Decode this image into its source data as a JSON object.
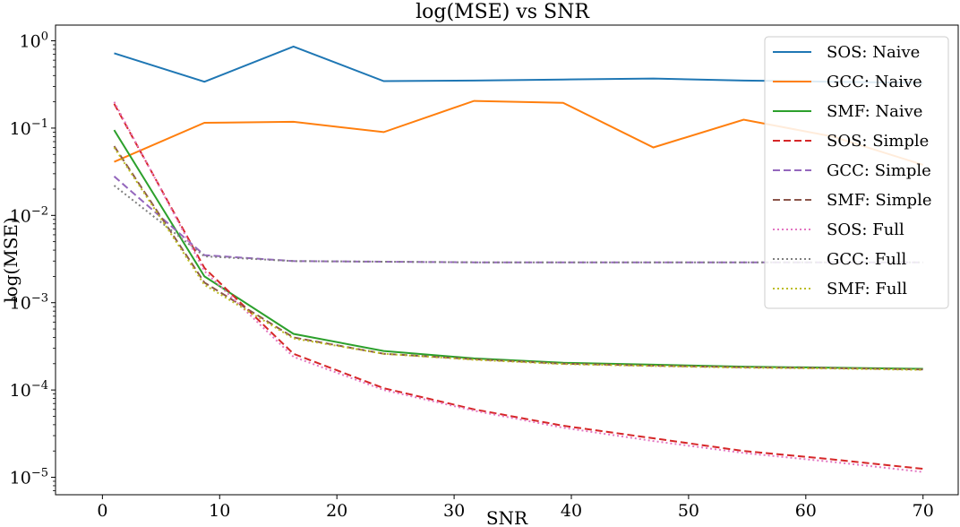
{
  "chart_data": {
    "type": "line",
    "title": "log(MSE) vs SNR",
    "xlabel": "SNR",
    "ylabel": "log(MSE)",
    "xlim": [
      -4,
      73
    ],
    "ylim_log10": [
      -5.2,
      0.18
    ],
    "yscale": "log",
    "grid": false,
    "legend_position": "top-right",
    "x_ticks": [
      0,
      10,
      20,
      30,
      40,
      50,
      60,
      70
    ],
    "x_tick_labels": [
      "0",
      "10",
      "20",
      "30",
      "40",
      "50",
      "60",
      "70"
    ],
    "y_ticks_log10": [
      0,
      -1,
      -2,
      -3,
      -4,
      -5
    ],
    "y_tick_labels": [
      {
        "base": "10",
        "exp": "0"
      },
      {
        "base": "10",
        "exp": "−1"
      },
      {
        "base": "10",
        "exp": "−2"
      },
      {
        "base": "10",
        "exp": "−3"
      },
      {
        "base": "10",
        "exp": "−4"
      },
      {
        "base": "10",
        "exp": "−5"
      }
    ],
    "x": [
      1,
      8.7,
      16.3,
      24,
      31.7,
      39.3,
      47,
      54.7,
      62.3,
      70
    ],
    "series": [
      {
        "name": "SOS: Naive",
        "color": "#1f77b4",
        "dash": "solid",
        "values": [
          0.72,
          0.34,
          0.86,
          0.345,
          0.35,
          0.36,
          0.37,
          0.35,
          0.34,
          0.33
        ]
      },
      {
        "name": "GCC: Naive",
        "color": "#ff7f0e",
        "dash": "solid",
        "values": [
          0.041,
          0.115,
          0.118,
          0.09,
          0.205,
          0.195,
          0.06,
          0.125,
          0.08,
          0.038
        ]
      },
      {
        "name": "SMF: Naive",
        "color": "#2ca02c",
        "dash": "solid",
        "values": [
          0.095,
          0.002,
          0.00044,
          0.00028,
          0.00023,
          0.000205,
          0.000195,
          0.000185,
          0.00018,
          0.000175
        ]
      },
      {
        "name": "SOS: Simple",
        "color": "#d62728",
        "dash": "dashed",
        "values": [
          0.19,
          0.0025,
          0.00026,
          0.000105,
          6e-05,
          3.9e-05,
          2.8e-05,
          2e-05,
          1.6e-05,
          1.25e-05
        ]
      },
      {
        "name": "GCC: Simple",
        "color": "#9467bd",
        "dash": "dashed",
        "values": [
          0.028,
          0.0035,
          0.003,
          0.00295,
          0.0029,
          0.0029,
          0.0029,
          0.0029,
          0.0029,
          0.0029
        ]
      },
      {
        "name": "SMF: Simple",
        "color": "#8c564b",
        "dash": "dashed",
        "values": [
          0.062,
          0.0017,
          0.0004,
          0.00026,
          0.000225,
          0.0002,
          0.00019,
          0.000182,
          0.000178,
          0.000172
        ]
      },
      {
        "name": "SOS: Full",
        "color": "#e377c2",
        "dash": "dotted",
        "values": [
          0.2,
          0.0023,
          0.00024,
          0.0001,
          5.8e-05,
          3.7e-05,
          2.6e-05,
          1.9e-05,
          1.5e-05,
          1.15e-05
        ]
      },
      {
        "name": "GCC: Full",
        "color": "#7f7f7f",
        "dash": "dotted",
        "values": [
          0.022,
          0.0034,
          0.003,
          0.00295,
          0.0029,
          0.0029,
          0.0029,
          0.0029,
          0.0029,
          0.0029
        ]
      },
      {
        "name": "SMF: Full",
        "color": "#bcbd22",
        "dash": "dotted",
        "values": [
          0.06,
          0.0016,
          0.00039,
          0.00026,
          0.000222,
          0.000198,
          0.000188,
          0.00018,
          0.000176,
          0.00017
        ]
      }
    ]
  }
}
